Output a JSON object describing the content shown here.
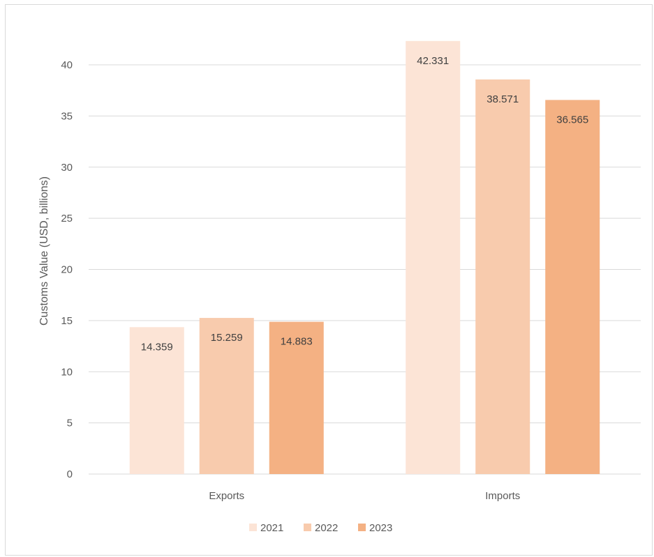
{
  "chart_data": {
    "type": "bar",
    "title": "",
    "xlabel": "",
    "ylabel": "Customs Value (USD, billions)",
    "categories": [
      "Exports",
      "Imports"
    ],
    "series": [
      {
        "name": "2021",
        "values": [
          14.359,
          42.331
        ],
        "color": "#fce4d6"
      },
      {
        "name": "2022",
        "values": [
          15.259,
          38.571
        ],
        "color": "#f8cbad"
      },
      {
        "name": "2023",
        "values": [
          14.883,
          36.565
        ],
        "color": "#f4b183"
      }
    ],
    "data_labels": [
      [
        "14.359",
        "42.331"
      ],
      [
        "15.259",
        "38.571"
      ],
      [
        "14.883",
        "36.565"
      ]
    ],
    "yticks": [
      "0",
      "5",
      "10",
      "15",
      "20",
      "25",
      "30",
      "35",
      "40"
    ],
    "ylim": [
      0,
      40
    ],
    "grid": true,
    "legend_position": "bottom"
  }
}
